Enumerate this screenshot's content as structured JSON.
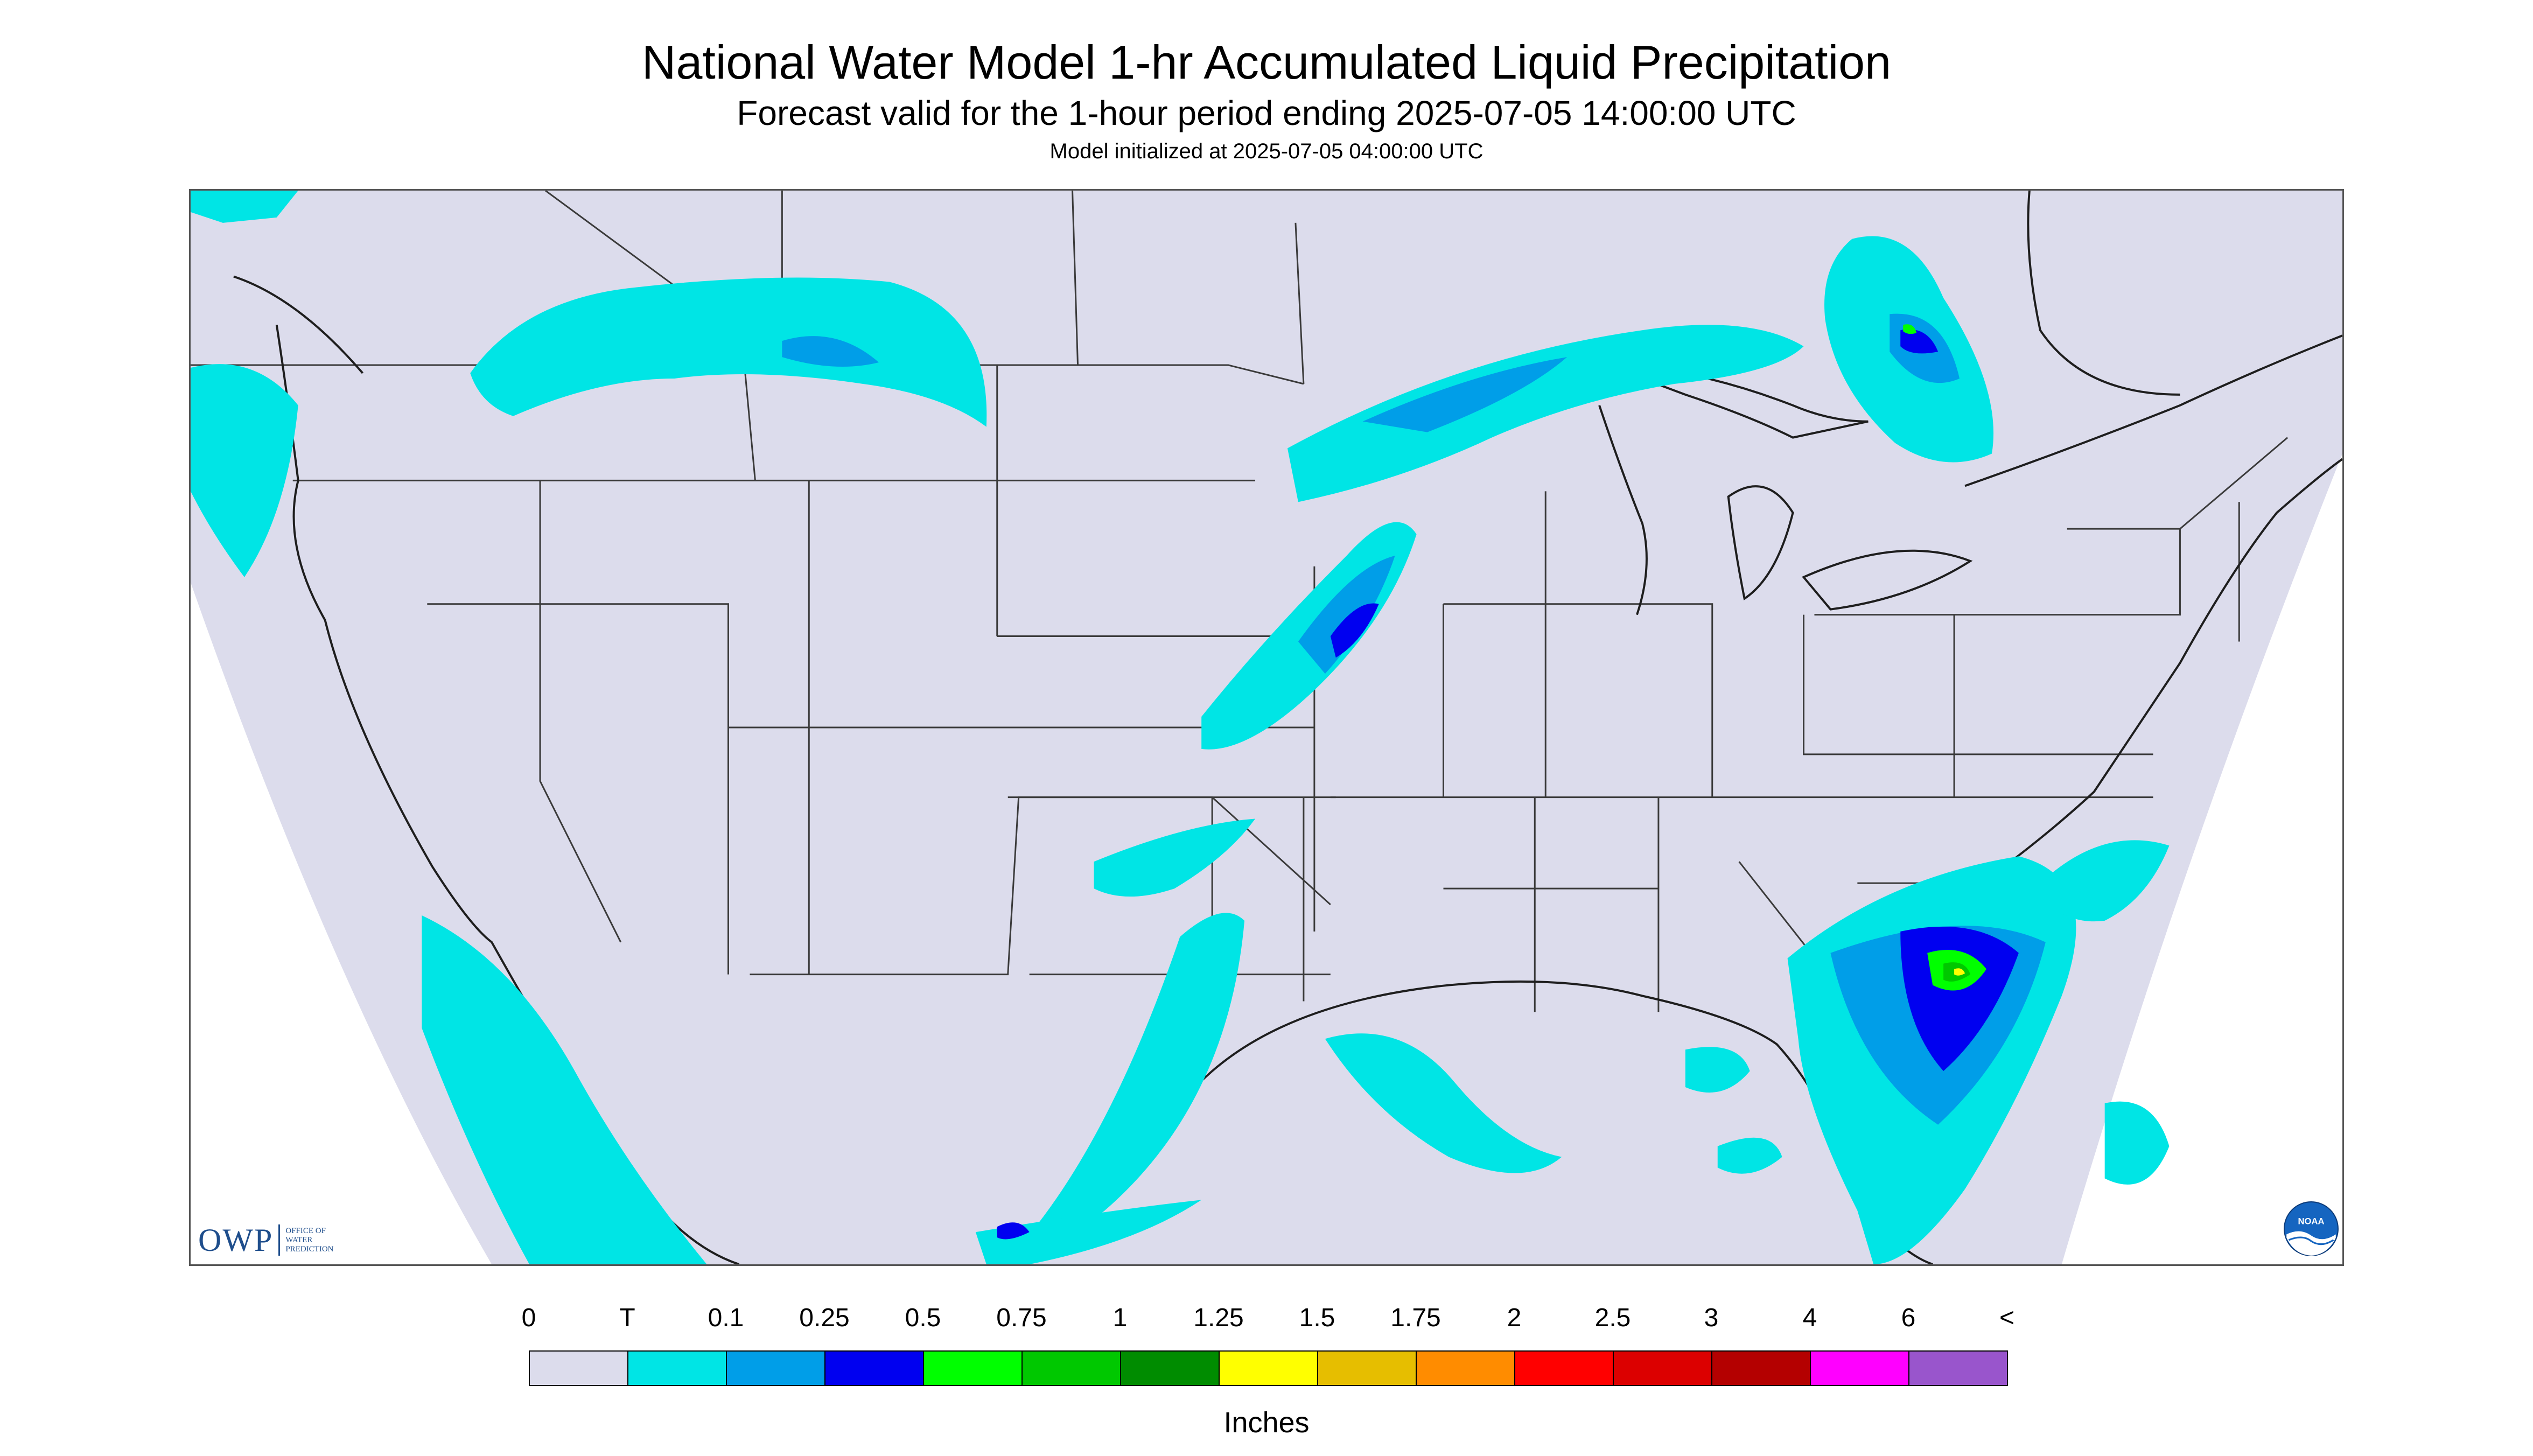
{
  "header": {
    "title": "National Water Model 1-hr Accumulated Liquid Precipitation",
    "subtitle": "Forecast valid for the 1-hour period ending 2025-07-05 14:00:00 UTC",
    "init": "Model initialized at 2025-07-05 04:00:00 UTC"
  },
  "map": {
    "background_color": "#dcdcec",
    "outside_color": "#ffffff",
    "border_color": "#3a3a3a",
    "precip_areas": [
      {
        "id": "pacific-northwest-offshore",
        "level": "T"
      },
      {
        "id": "northern-rockies-band",
        "level": "T"
      },
      {
        "id": "upper-midwest-band",
        "level": "T"
      },
      {
        "id": "hudson-bay-area",
        "level": "T"
      },
      {
        "id": "central-plains-band",
        "level": "T"
      },
      {
        "id": "southern-plains-cells",
        "level": "T"
      },
      {
        "id": "texas-gulf-band",
        "level": "T"
      },
      {
        "id": "baja-pacific-offshore",
        "level": "T"
      },
      {
        "id": "southeast-coastal-system",
        "level": "0.75"
      },
      {
        "id": "florida-scattered-cells",
        "level": "T"
      }
    ]
  },
  "legend": {
    "labels": [
      "0",
      "T",
      "0.1",
      "0.25",
      "0.5",
      "0.75",
      "1",
      "1.25",
      "1.5",
      "1.75",
      "2",
      "2.5",
      "3",
      "4",
      "6",
      "<"
    ],
    "colors": [
      "#dcdcec",
      "#00e5e5",
      "#009ee8",
      "#0000f0",
      "#00ff00",
      "#00c800",
      "#008c00",
      "#ffff00",
      "#e6be00",
      "#ff8c00",
      "#ff0000",
      "#dc0000",
      "#b40000",
      "#ff00ff",
      "#9955cc"
    ],
    "units": "Inches"
  },
  "logos": {
    "owp": {
      "letters": "OWP",
      "line1": "OFFICE OF",
      "line2": "WATER",
      "line3": "PREDICTION",
      "color": "#1f4e8c"
    },
    "noaa": {
      "text": "NOAA",
      "color": "#1565c0"
    }
  }
}
